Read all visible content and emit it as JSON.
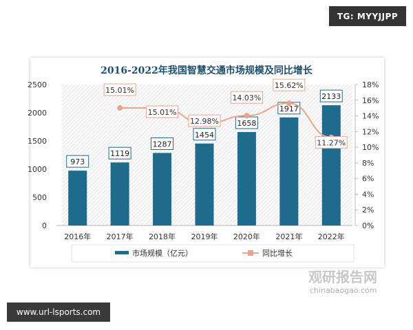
{
  "overlay": {
    "top_right_label": "TG: MYYJJPP",
    "bottom_left_label": "www.url-lsports.com"
  },
  "watermark": {
    "cn": "观研报告网",
    "en": "chinabaogao.com"
  },
  "colors": {
    "bar": "#1f6b8e",
    "line": "#e8a58a",
    "label_border": "#1f6b8e",
    "line_label_border": "#e8a58a"
  },
  "chart_data": {
    "type": "bar",
    "title": "2016-2022年我国智慧交通市场规模及同比增长",
    "categories": [
      "2016年",
      "2017年",
      "2018年",
      "2019年",
      "2020年",
      "2021年",
      "2022年"
    ],
    "series": [
      {
        "name": "市场规模（亿元）",
        "type": "bar",
        "axis": "left",
        "values": [
          973,
          1119,
          1287,
          1454,
          1658,
          1917,
          2133
        ]
      },
      {
        "name": "同比增长",
        "type": "line",
        "axis": "right",
        "values": [
          null,
          15.01,
          15.01,
          12.98,
          14.03,
          15.62,
          11.27
        ],
        "labels": [
          "",
          "15.01%",
          "15.01%",
          "12.98%",
          "14.03%",
          "15.62%",
          "11.27%"
        ]
      }
    ],
    "ylim": [
      0,
      2500
    ],
    "yticks": [
      "0",
      "500",
      "1000",
      "1500",
      "2000",
      "2500"
    ],
    "y2lim": [
      0,
      18
    ],
    "y2ticks": [
      "0%",
      "2%",
      "4%",
      "6%",
      "8%",
      "10%",
      "12%",
      "14%",
      "16%",
      "18%"
    ],
    "legend": "bottom",
    "grid": false
  }
}
